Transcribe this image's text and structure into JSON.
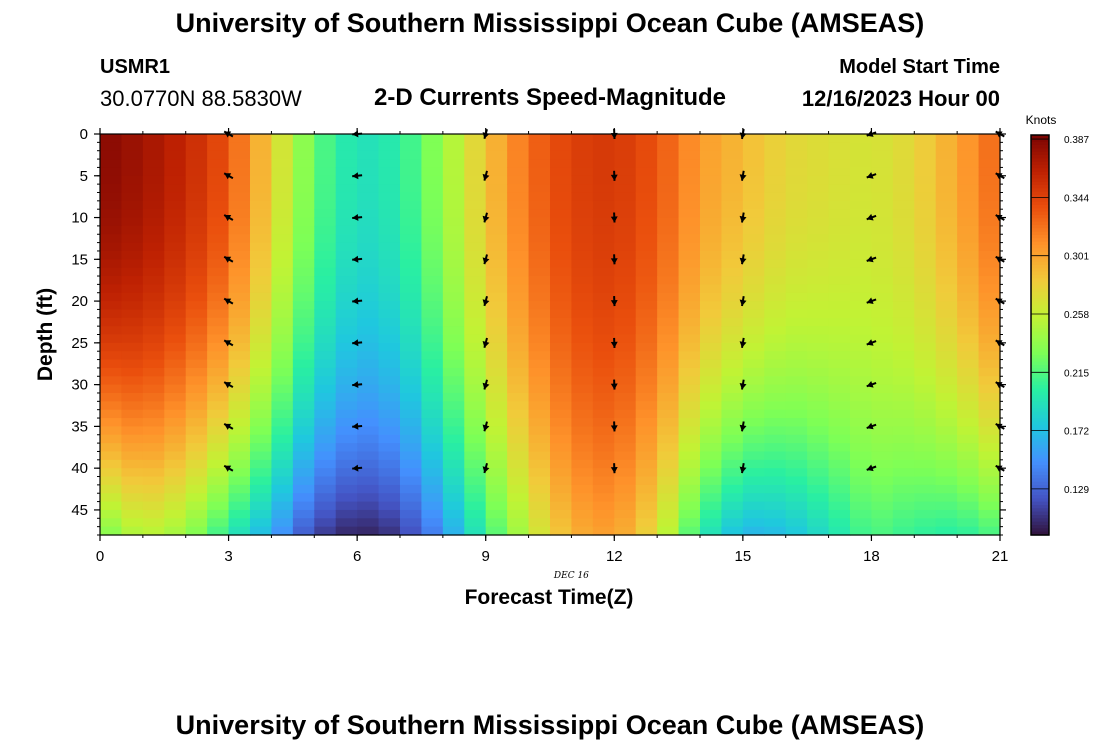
{
  "header": {
    "title": "University of Southern Mississippi Ocean Cube (AMSEAS)",
    "station_id": "USMR1",
    "station_coords": "30.0770N  88.5830W",
    "plot_title": "2-D Currents Speed-Magnitude",
    "model_start_label": "Model Start Time",
    "model_start_value": "12/16/2023 Hour 00"
  },
  "footer": {
    "title": "University of Southern Mississippi Ocean Cube (AMSEAS)"
  },
  "colors": {
    "stops": [
      "#30123b",
      "#4454c4",
      "#4490fe",
      "#1fc8de",
      "#29efa2",
      "#7dff56",
      "#c1f334",
      "#f1ca3a",
      "#fe922a",
      "#ea4f0d",
      "#be2102",
      "#7a0403"
    ]
  },
  "chart_data": {
    "type": "heatmap",
    "title": "2-D Currents Speed-Magnitude",
    "xlabel": "Forecast Time(Z)",
    "ylabel": "Depth (ft)",
    "x_date_label": "DEC 16",
    "x_ticks": [
      0,
      3,
      6,
      9,
      12,
      15,
      18,
      21
    ],
    "y_ticks": [
      0,
      5,
      10,
      15,
      20,
      25,
      30,
      35,
      40,
      45
    ],
    "xlim": [
      0,
      21
    ],
    "ylim": [
      0,
      48
    ],
    "colorbar": {
      "label": "Knots",
      "ticks": [
        "0.387",
        "0.344",
        "0.301",
        "0.258",
        "0.215",
        "0.172",
        "0.129"
      ],
      "tick_values": [
        0.387,
        0.344,
        0.301,
        0.258,
        0.215,
        0.172,
        0.129
      ],
      "range": [
        0.095,
        0.39
      ]
    },
    "surface_speed_knots": [
      {
        "t": 0,
        "v": 0.385
      },
      {
        "t": 1,
        "v": 0.375
      },
      {
        "t": 2,
        "v": 0.36
      },
      {
        "t": 3,
        "v": 0.335
      },
      {
        "t": 4,
        "v": 0.28
      },
      {
        "t": 5,
        "v": 0.22
      },
      {
        "t": 6,
        "v": 0.19
      },
      {
        "t": 7,
        "v": 0.2
      },
      {
        "t": 8,
        "v": 0.24
      },
      {
        "t": 9,
        "v": 0.285
      },
      {
        "t": 10,
        "v": 0.325
      },
      {
        "t": 11,
        "v": 0.345
      },
      {
        "t": 12,
        "v": 0.35
      },
      {
        "t": 13,
        "v": 0.335
      },
      {
        "t": 14,
        "v": 0.305
      },
      {
        "t": 15,
        "v": 0.29
      },
      {
        "t": 16,
        "v": 0.275
      },
      {
        "t": 17,
        "v": 0.27
      },
      {
        "t": 18,
        "v": 0.265
      },
      {
        "t": 19,
        "v": 0.275
      },
      {
        "t": 20,
        "v": 0.3
      },
      {
        "t": 21,
        "v": 0.33
      }
    ],
    "bottom_speed_knots": [
      {
        "t": 0,
        "v": 0.225
      },
      {
        "t": 1,
        "v": 0.255
      },
      {
        "t": 2,
        "v": 0.24
      },
      {
        "t": 3,
        "v": 0.2
      },
      {
        "t": 4,
        "v": 0.16
      },
      {
        "t": 5,
        "v": 0.115
      },
      {
        "t": 6,
        "v": 0.1
      },
      {
        "t": 7,
        "v": 0.11
      },
      {
        "t": 8,
        "v": 0.15
      },
      {
        "t": 9,
        "v": 0.205
      },
      {
        "t": 10,
        "v": 0.255
      },
      {
        "t": 11,
        "v": 0.295
      },
      {
        "t": 12,
        "v": 0.305
      },
      {
        "t": 13,
        "v": 0.27
      },
      {
        "t": 14,
        "v": 0.2
      },
      {
        "t": 15,
        "v": 0.165
      },
      {
        "t": 16,
        "v": 0.17
      },
      {
        "t": 17,
        "v": 0.19
      },
      {
        "t": 18,
        "v": 0.215
      },
      {
        "t": 19,
        "v": 0.205
      },
      {
        "t": 20,
        "v": 0.2
      },
      {
        "t": 21,
        "v": 0.215
      }
    ],
    "vector_times": [
      3,
      6,
      9,
      12,
      15,
      18,
      21
    ],
    "vector_depths": [
      0,
      5,
      10,
      15,
      20,
      25,
      30,
      35,
      40
    ],
    "vector_direction_deg": [
      {
        "t": 3,
        "dir": 300
      },
      {
        "t": 6,
        "dir": 265
      },
      {
        "t": 9,
        "dir": 195
      },
      {
        "t": 12,
        "dir": 178
      },
      {
        "t": 15,
        "dir": 190
      },
      {
        "t": 18,
        "dir": 250
      },
      {
        "t": 21,
        "dir": 300
      }
    ]
  }
}
